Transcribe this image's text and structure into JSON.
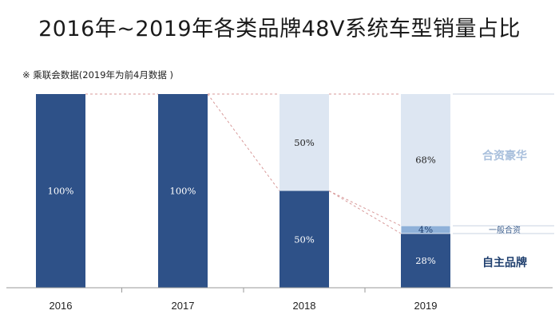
{
  "header": {
    "title": "2016年~2019年各类品牌48V系统车型销量占比",
    "source_note": "※ 乘联会数据(2019年为前4月数据 )"
  },
  "colors": {
    "domestic": "#2e5188",
    "jv_general": "#8fb1d9",
    "jv_luxury": "#dde6f2",
    "legend_luxury_text": "#a8bfdc",
    "legend_general_text": "#3d5f8e",
    "legend_domestic_text": "#1f3f6e"
  },
  "chart_data": {
    "type": "bar",
    "stacked": true,
    "categories": [
      "2016",
      "2017",
      "2018",
      "2019"
    ],
    "series": [
      {
        "name": "自主品牌",
        "values": [
          100,
          100,
          50,
          28
        ],
        "labels": [
          "100%",
          "100%",
          "50%",
          "28%"
        ]
      },
      {
        "name": "一般合资",
        "values": [
          0,
          0,
          0,
          4
        ],
        "labels": [
          "",
          "",
          "",
          "4%"
        ]
      },
      {
        "name": "合资豪华",
        "values": [
          0,
          0,
          50,
          68
        ],
        "labels": [
          "",
          "",
          "50%",
          "68%"
        ]
      }
    ],
    "ylim": [
      0,
      100
    ],
    "legend_position": "right"
  }
}
